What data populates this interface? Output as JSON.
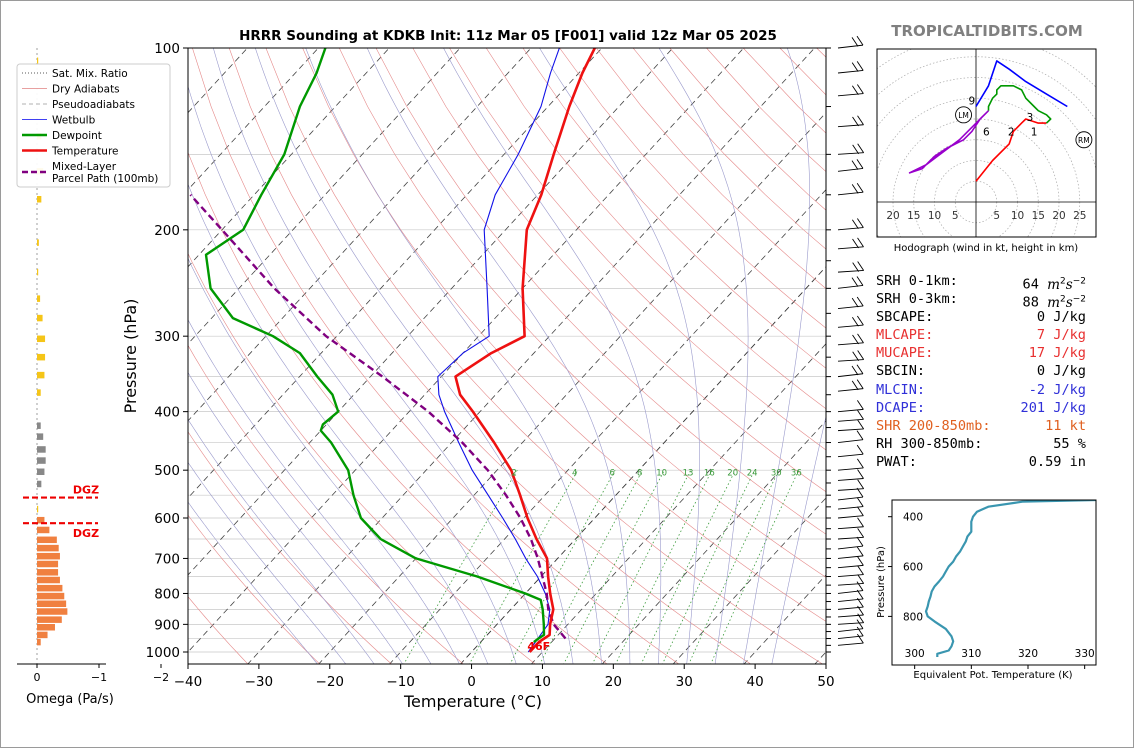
{
  "header": {
    "title": "HRRR Sounding at KDKB Init: 11z Mar 05 [F001] valid 12z Mar 05 2025",
    "brand": "TROPICALTIDBITS.COM"
  },
  "legend": {
    "items": [
      {
        "key": "sat-mix-ratio",
        "label": "Sat. Mix. Ratio",
        "color": "#5a5a5a",
        "style": "dotted"
      },
      {
        "key": "dry-adiabats",
        "label": "Dry Adiabats",
        "color": "#e08080",
        "style": "solid-thin"
      },
      {
        "key": "pseudoadiabats",
        "label": "Pseudoadiabats",
        "color": "#999999",
        "style": "dashed-thin"
      },
      {
        "key": "wetbulb",
        "label": "Wetbulb",
        "color": "#0000ee",
        "style": "solid-thin"
      },
      {
        "key": "dewpoint",
        "label": "Dewpoint",
        "color": "#009900",
        "style": "solid-thick"
      },
      {
        "key": "temperature",
        "label": "Temperature",
        "color": "#ee1111",
        "style": "solid-thick"
      },
      {
        "key": "parcel",
        "label": "Mixed-Layer",
        "label2": "Parcel Path (100mb)",
        "color": "#800080",
        "style": "dashed-thick"
      }
    ]
  },
  "omega": {
    "xlabel": "Omega (Pa/s)",
    "tick_labels": [
      "0",
      "−1",
      "−2"
    ],
    "dgz_label": "DGZ",
    "dgz_color": "#ee0000",
    "dgz_bounds_hpa": [
      555,
      612
    ]
  },
  "hodograph": {
    "caption": "Hodograph (wind in kt, height in km)",
    "x_tick_labels": [
      "20",
      "15",
      "10",
      "5",
      "5",
      "10",
      "15",
      "20",
      "25"
    ],
    "lm_label": "LM",
    "rm_label": "RM",
    "height_labels": [
      "9",
      "6",
      "3",
      "2",
      "1"
    ]
  },
  "stats": [
    {
      "key": "srh01",
      "label": "SRH 0-1km:",
      "value": "64",
      "unit": "m2s-2",
      "color": "#000000"
    },
    {
      "key": "srh03",
      "label": "SRH 0-3km:",
      "value": "88",
      "unit": "m2s-2",
      "color": "#000000"
    },
    {
      "key": "sbcape",
      "label": "SBCAPE:",
      "value": "0 J/kg",
      "color": "#000000"
    },
    {
      "key": "mlcape",
      "label": "MLCAPE:",
      "value": "7 J/kg",
      "color": "#e83030"
    },
    {
      "key": "mucape",
      "label": "MUCAPE:",
      "value": "17 J/kg",
      "color": "#e83030"
    },
    {
      "key": "sbcin",
      "label": "SBCIN:",
      "value": "0 J/kg",
      "color": "#000000"
    },
    {
      "key": "mlcin",
      "label": "MLCIN:",
      "value": "-2 J/kg",
      "color": "#3030d8"
    },
    {
      "key": "dcape",
      "label": "DCAPE:",
      "value": "201 J/kg",
      "color": "#3030d8"
    },
    {
      "key": "shr",
      "label": "SHR 200-850mb:",
      "value": "11 kt",
      "color": "#e06020"
    },
    {
      "key": "rh",
      "label": "RH 300-850mb:",
      "value": "55 %",
      "color": "#000000"
    },
    {
      "key": "pwat",
      "label": "PWAT:",
      "value": "0.59 in",
      "color": "#000000"
    }
  ],
  "theta_e_panel": {
    "xlabel": "Equivalent Pot. Temperature (K)",
    "ylabel": "Pressure (hPa)"
  },
  "chart_data": [
    {
      "type": "line",
      "name": "skew-t",
      "xlabel": "Temperature (°C)",
      "ylabel": "Pressure (hPa)",
      "xlim": [
        -40,
        50
      ],
      "ylim": [
        1050,
        100
      ],
      "y_scale": "log",
      "x_ticks": [
        -40,
        -30,
        -20,
        -10,
        0,
        10,
        20,
        30,
        40,
        50
      ],
      "y_ticks": [
        100,
        200,
        300,
        400,
        500,
        600,
        700,
        800,
        900,
        1000
      ],
      "mixing_ratio_labels": [
        "2",
        "4",
        "6",
        "8",
        "10",
        "13",
        "16",
        "20",
        "24",
        "30",
        "36"
      ],
      "surface_temp_label": "46F",
      "temperature": {
        "p": [
          1000,
          963,
          950,
          937,
          900,
          850,
          800,
          750,
          700,
          650,
          600,
          550,
          500,
          450,
          400,
          375,
          350,
          320,
          300,
          250,
          200,
          175,
          150,
          125,
          110,
          100
        ],
        "t": [
          8.2,
          8.2,
          8.5,
          8.8,
          7.5,
          6.0,
          3.5,
          1.0,
          -1.5,
          -5.5,
          -9.5,
          -13.5,
          -18,
          -24,
          -31,
          -35,
          -38,
          -36,
          -33.5,
          -40,
          -47,
          -49.5,
          -53,
          -57,
          -59.5,
          -61
        ]
      },
      "dewpoint": {
        "p": [
          963,
          950,
          937,
          900,
          850,
          820,
          800,
          750,
          700,
          650,
          600,
          550,
          500,
          450,
          430,
          420,
          400,
          375,
          350,
          320,
          300,
          280,
          250,
          220,
          200,
          175,
          150,
          125,
          110,
          100
        ],
        "td": [
          7.5,
          7.7,
          8.0,
          6.6,
          4.5,
          3.0,
          0.0,
          -9.0,
          -20,
          -27.5,
          -33,
          -37,
          -41,
          -47,
          -50,
          -50.5,
          -50,
          -53,
          -57.5,
          -63,
          -69,
          -77,
          -84,
          -89,
          -87,
          -89,
          -91,
          -95,
          -97,
          -99
        ]
      },
      "wetbulb": {
        "p": [
          1000,
          900,
          850,
          800,
          750,
          700,
          650,
          600,
          550,
          500,
          450,
          400,
          375,
          350,
          320,
          300,
          250,
          200,
          175,
          150,
          125,
          110,
          100
        ],
        "tw": [
          8.0,
          7.2,
          5.5,
          2.8,
          -0.5,
          -4.5,
          -8.5,
          -13,
          -18,
          -23.5,
          -29,
          -35,
          -38,
          -40.5,
          -40,
          -38.5,
          -45,
          -53,
          -56,
          -58,
          -61,
          -64,
          -66
        ]
      },
      "parcel": {
        "p": [
          950,
          900,
          850,
          800,
          750,
          700,
          650,
          600,
          550,
          500,
          450,
          400,
          350,
          300,
          250,
          200,
          175
        ],
        "t": [
          11.5,
          8.0,
          5.3,
          3.0,
          0.2,
          -2.8,
          -6.3,
          -10.5,
          -15.5,
          -21.3,
          -28.5,
          -37.3,
          -48.3,
          -61.5,
          -75,
          -90,
          -99
        ]
      }
    },
    {
      "type": "bar",
      "name": "omega",
      "xlabel": "Omega (Pa/s)",
      "xlim": [
        0.2,
        -2.2
      ],
      "x_ticks": [
        0,
        -1,
        -2
      ],
      "bars": [
        {
          "p": 105,
          "w": -0.01
        },
        {
          "p": 140,
          "w": -0.07
        },
        {
          "p": 160,
          "w": -0.1
        },
        {
          "p": 178,
          "w": -0.07
        },
        {
          "p": 210,
          "w": -0.03
        },
        {
          "p": 235,
          "w": -0.01
        },
        {
          "p": 260,
          "w": -0.05
        },
        {
          "p": 280,
          "w": -0.09
        },
        {
          "p": 303,
          "w": -0.13
        },
        {
          "p": 325,
          "w": -0.13
        },
        {
          "p": 348,
          "w": -0.12
        },
        {
          "p": 372,
          "w": -0.06
        },
        {
          "p": 422,
          "w": -0.06
        },
        {
          "p": 440,
          "w": -0.1
        },
        {
          "p": 462,
          "w": -0.14
        },
        {
          "p": 482,
          "w": -0.14
        },
        {
          "p": 503,
          "w": -0.12
        },
        {
          "p": 527,
          "w": -0.07
        },
        {
          "p": 580,
          "w": -0.01
        },
        {
          "p": 605,
          "w": -0.12
        },
        {
          "p": 628,
          "w": -0.2
        },
        {
          "p": 652,
          "w": -0.32
        },
        {
          "p": 673,
          "w": -0.35
        },
        {
          "p": 694,
          "w": -0.37
        },
        {
          "p": 715,
          "w": -0.34
        },
        {
          "p": 738,
          "w": -0.34
        },
        {
          "p": 760,
          "w": -0.37
        },
        {
          "p": 784,
          "w": -0.41
        },
        {
          "p": 808,
          "w": -0.44
        },
        {
          "p": 832,
          "w": -0.47
        },
        {
          "p": 857,
          "w": -0.49
        },
        {
          "p": 884,
          "w": -0.4
        },
        {
          "p": 910,
          "w": -0.29
        },
        {
          "p": 937,
          "w": -0.17
        },
        {
          "p": 963,
          "w": -0.06
        }
      ]
    },
    {
      "type": "line",
      "name": "hodograph",
      "xlim": [
        -24,
        30
      ],
      "ylim": [
        -8,
        37
      ],
      "x_ticks": [
        -20,
        -15,
        -10,
        -5,
        5,
        10,
        15,
        20,
        25
      ],
      "rings_kt": [
        5,
        10,
        15,
        20,
        25,
        30,
        35,
        40
      ],
      "storm_motion": {
        "lm": [
          -3,
          21
        ],
        "rm": [
          26,
          15
        ]
      },
      "series": [
        {
          "color": "#ff0000",
          "points": [
            [
              0,
              5
            ],
            [
              4,
              10
            ],
            [
              8,
              14
            ],
            [
              9,
              17
            ],
            [
              11,
              19
            ],
            [
              12,
              20
            ],
            [
              15,
              19
            ],
            [
              16,
              19
            ],
            [
              17,
              19
            ]
          ]
        },
        {
          "color": "#009900",
          "points": [
            [
              17,
              19
            ],
            [
              18,
              20
            ],
            [
              17,
              21
            ],
            [
              15,
              22
            ],
            [
              14,
              23
            ],
            [
              12,
              25
            ],
            [
              11,
              27
            ],
            [
              9,
              28
            ],
            [
              6,
              28
            ],
            [
              5,
              27
            ],
            [
              5,
              26
            ],
            [
              4,
              25
            ],
            [
              3,
              23
            ],
            [
              3,
              22
            ]
          ]
        },
        {
          "color": "#9900cc",
          "points": [
            [
              3,
              22
            ],
            [
              1,
              20
            ],
            [
              -1,
              17
            ],
            [
              -3,
              15
            ],
            [
              -7,
              13
            ],
            [
              -10,
              11
            ],
            [
              -13,
              8
            ],
            [
              -16,
              7
            ],
            [
              -12,
              9
            ],
            [
              -8,
              12
            ],
            [
              -4,
              15
            ],
            [
              -1,
              18
            ],
            [
              1,
              20
            ],
            [
              3,
              22
            ]
          ]
        },
        {
          "color": "#0000ff",
          "points": [
            [
              0,
              23
            ],
            [
              3,
              28
            ],
            [
              5,
              34
            ],
            [
              8,
              32
            ],
            [
              12,
              29
            ],
            [
              17,
              26
            ],
            [
              22,
              23
            ]
          ]
        }
      ]
    },
    {
      "type": "line",
      "name": "equivalent-potential-temperature",
      "xlabel": "Equivalent Pot. Temperature (K)",
      "ylabel": "Pressure (hPa)",
      "xlim": [
        296,
        332
      ],
      "ylim": [
        995,
        333
      ],
      "x_ticks": [
        300,
        310,
        320,
        330
      ],
      "y_ticks": [
        400,
        600,
        800
      ],
      "theta_e": {
        "p": [
          963,
          950,
          937,
          920,
          900,
          880,
          850,
          820,
          800,
          780,
          760,
          740,
          720,
          700,
          680,
          660,
          640,
          620,
          600,
          580,
          560,
          540,
          520,
          500,
          480,
          460,
          440,
          420,
          400,
          380,
          360,
          340,
          333
        ],
        "k": [
          304,
          304,
          306,
          306.5,
          306.8,
          306.5,
          305.5,
          303.5,
          302.3,
          302,
          302.3,
          302.5,
          302.8,
          303,
          303.5,
          304.3,
          305,
          305.5,
          306,
          306.8,
          307.3,
          308,
          308.5,
          309,
          309.3,
          310,
          310,
          310,
          310.3,
          311,
          313,
          319,
          332
        ]
      }
    }
  ]
}
